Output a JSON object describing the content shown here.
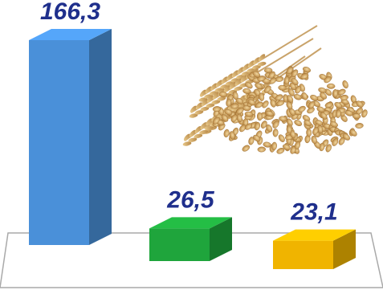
{
  "chart_data": {
    "type": "bar",
    "categories": [
      "",
      "",
      ""
    ],
    "values": [
      166.3,
      26.5,
      23.1
    ],
    "value_labels": [
      "166,3",
      "26,5",
      "23,1"
    ],
    "series_colors": [
      "#4a90d9",
      "#1fa53c",
      "#f0b400"
    ],
    "label_color": "#1f2f8c",
    "title": "",
    "xlabel": "",
    "ylabel": "",
    "legend": "none",
    "grid": false,
    "style": "3d-bars",
    "decoration": "wheat-ears-and-grain-icon"
  }
}
